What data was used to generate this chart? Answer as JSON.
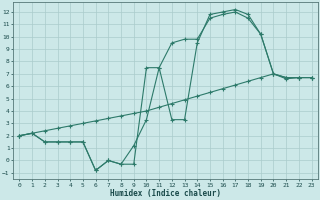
{
  "xlabel": "Humidex (Indice chaleur)",
  "bg_color": "#cce8e8",
  "grid_color": "#aacccc",
  "line_color": "#2d7a6a",
  "xlim": [
    -0.5,
    23.5
  ],
  "ylim": [
    -1.5,
    12.8
  ],
  "xticks": [
    0,
    1,
    2,
    3,
    4,
    5,
    6,
    7,
    8,
    9,
    10,
    11,
    12,
    13,
    14,
    15,
    16,
    17,
    18,
    19,
    20,
    21,
    22,
    23
  ],
  "yticks": [
    -1,
    0,
    1,
    2,
    3,
    4,
    5,
    6,
    7,
    8,
    9,
    10,
    11,
    12
  ],
  "series1_x": [
    0,
    1,
    2,
    3,
    4,
    5,
    6,
    7,
    8,
    9,
    10,
    11,
    12,
    13,
    14,
    15,
    16,
    17,
    18,
    19,
    20,
    21,
    22,
    23
  ],
  "series1_y": [
    2.0,
    2.2,
    2.4,
    2.6,
    2.8,
    3.0,
    3.2,
    3.4,
    3.6,
    3.8,
    4.0,
    4.3,
    4.6,
    4.9,
    5.2,
    5.5,
    5.8,
    6.1,
    6.4,
    6.7,
    7.0,
    6.6,
    6.7,
    6.7
  ],
  "series2_x": [
    0,
    1,
    2,
    3,
    4,
    5,
    6,
    7,
    8,
    9,
    10,
    11,
    12,
    13,
    14,
    15,
    16,
    17,
    18,
    19,
    20,
    21,
    22,
    23
  ],
  "series2_y": [
    2.0,
    2.2,
    1.5,
    1.5,
    1.5,
    1.5,
    -0.8,
    0.0,
    -0.3,
    -0.3,
    7.5,
    7.5,
    3.3,
    3.3,
    9.5,
    11.8,
    12.0,
    12.2,
    11.8,
    10.2,
    7.0,
    6.7,
    6.7,
    6.7
  ],
  "series3_x": [
    0,
    1,
    2,
    3,
    4,
    5,
    6,
    7,
    8,
    9,
    10,
    11,
    12,
    13,
    14,
    15,
    16,
    17,
    18,
    19,
    20,
    21,
    22,
    23
  ],
  "series3_y": [
    2.0,
    2.2,
    1.5,
    1.5,
    1.5,
    1.5,
    -0.8,
    0.0,
    -0.3,
    1.2,
    3.3,
    7.5,
    9.5,
    9.8,
    9.8,
    11.5,
    11.8,
    12.0,
    11.5,
    10.2,
    7.0,
    6.7,
    6.7,
    6.7
  ]
}
